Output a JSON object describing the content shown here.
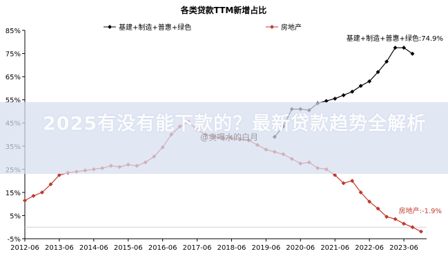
{
  "chart_data": {
    "type": "line",
    "title": "各类贷款TTM新增占比",
    "xlabel": "",
    "ylabel": "",
    "ylim": [
      -5,
      85
    ],
    "y_ticks": [
      "-5%",
      "5%",
      "15%",
      "25%",
      "35%",
      "45%",
      "55%",
      "65%",
      "75%",
      "85%"
    ],
    "y_tick_values": [
      -5,
      5,
      15,
      25,
      35,
      45,
      55,
      65,
      75,
      85
    ],
    "x_ticks": [
      "2012-06",
      "2013-06",
      "2014-06",
      "2015-06",
      "2016-06",
      "2017-06",
      "2018-06",
      "2019-06",
      "2020-06",
      "2021-06",
      "2022-06",
      "2023-06"
    ],
    "x_tick_values": [
      2012.5,
      2013.5,
      2014.5,
      2015.5,
      2016.5,
      2017.5,
      2018.5,
      2019.5,
      2020.5,
      2021.5,
      2022.5,
      2023.5
    ],
    "xlim": [
      2012.5,
      2024.0
    ],
    "legend_position": "top",
    "grid": false,
    "series": [
      {
        "name": "基建+制造+普惠+绿色",
        "color": "#000000",
        "marker": "diamond",
        "end_label": "基建+制造+普惠+绿色:74.9%",
        "x": [
          2019.75,
          2020.0,
          2020.25,
          2020.5,
          2020.75,
          2021.0,
          2021.25,
          2021.5,
          2021.75,
          2022.0,
          2022.25,
          2022.5,
          2022.75,
          2023.0,
          2023.25,
          2023.5,
          2023.75
        ],
        "y": [
          39.0,
          43.5,
          51.0,
          51.0,
          50.5,
          53.5,
          54.5,
          55.5,
          57.0,
          58.5,
          61.0,
          63.0,
          67.0,
          71.5,
          77.5,
          77.5,
          74.9
        ]
      },
      {
        "name": "房地产",
        "color": "#c0392b",
        "marker": "diamond",
        "end_label": "房地产:-1.9%",
        "x": [
          2012.5,
          2012.75,
          2013.0,
          2013.25,
          2013.5,
          2013.75,
          2014.0,
          2014.25,
          2014.5,
          2014.75,
          2015.0,
          2015.25,
          2015.5,
          2015.75,
          2016.0,
          2016.25,
          2016.5,
          2016.75,
          2017.0,
          2017.25,
          2017.5,
          2017.75,
          2018.0,
          2018.25,
          2018.5,
          2018.75,
          2019.0,
          2019.25,
          2019.5,
          2019.75,
          2020.0,
          2020.25,
          2020.5,
          2020.75,
          2021.0,
          2021.25,
          2021.5,
          2021.75,
          2022.0,
          2022.25,
          2022.5,
          2022.75,
          2023.0,
          2023.25,
          2023.5,
          2023.75,
          2024.0
        ],
        "y": [
          11.5,
          13.5,
          15.0,
          18.5,
          22.5,
          23.5,
          24.0,
          24.5,
          25.0,
          25.5,
          26.5,
          26.0,
          27.0,
          26.5,
          28.0,
          30.5,
          34.5,
          40.0,
          43.5,
          45.5,
          42.0,
          40.0,
          39.0,
          38.5,
          38.5,
          38.0,
          37.5,
          35.5,
          33.5,
          32.5,
          31.5,
          29.5,
          27.5,
          28.0,
          25.5,
          25.0,
          22.5,
          19.0,
          20.0,
          15.0,
          11.0,
          8.0,
          4.5,
          3.5,
          1.5,
          0.0,
          -1.9
        ]
      }
    ]
  },
  "overlay": {
    "banner_title": "2025有没有能下款的？最新贷款趋势全解析",
    "watermark": "@卖喝水的白月"
  }
}
